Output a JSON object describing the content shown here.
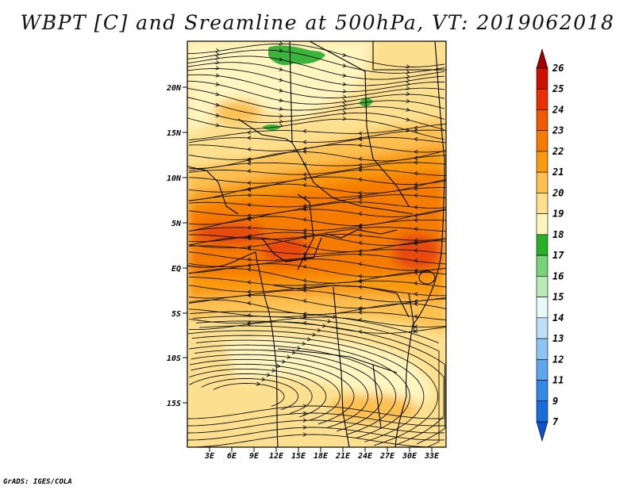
{
  "title": "WBPT [C] and Sreamline at 500hPa, VT: 2019062018",
  "credit": "GrADS: IGES/COLA",
  "lat_labels": [
    "20N",
    "15N",
    "10N",
    "5N",
    "EQ",
    "5S",
    "10S",
    "15S"
  ],
  "lon_labels": [
    "3E",
    "6E",
    "9E",
    "12E",
    "15E",
    "18E",
    "21E",
    "24E",
    "27E",
    "30E",
    "33E"
  ],
  "colorbar": {
    "levels": [
      "26",
      "25",
      "24",
      "23",
      "22",
      "21",
      "20",
      "19",
      "18",
      "17",
      "16",
      "15",
      "14",
      "13",
      "12",
      "11",
      "9",
      "7"
    ],
    "colors": [
      "#a50000",
      "#cc1100",
      "#e83000",
      "#f05a00",
      "#f57c00",
      "#fa9a10",
      "#fcc050",
      "#fde08f",
      "#fff5c0",
      "#28b028",
      "#78d278",
      "#b8eab8",
      "#e8f8fb",
      "#bde0f8",
      "#8ec4f2",
      "#5fa6ec",
      "#3489e4",
      "#1a6cdc",
      "#0f50d0"
    ]
  },
  "palette": {
    "hot": "#e84a10",
    "warm": "#f57c00",
    "mild": "#fa9a10",
    "pale": "#fcc050",
    "cream": "#fde08f",
    "cool": "#fff5c0",
    "green": "#3cb43c"
  }
}
